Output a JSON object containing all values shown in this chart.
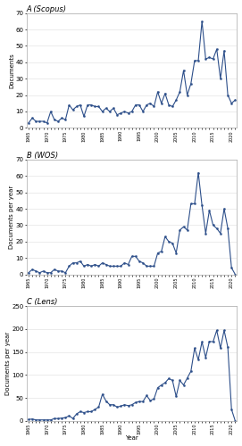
{
  "title_A": "A (Scopus)",
  "title_B": "B (WOS)",
  "title_C": "C (Lens)",
  "ylabel_A": "Documents",
  "ylabel_BC": "Documents per year",
  "xlabel": "Year",
  "line_color": "#2d4f8a",
  "marker": "o",
  "markersize": 1.5,
  "linewidth": 0.8,
  "years": [
    1965,
    1966,
    1967,
    1968,
    1969,
    1970,
    1971,
    1972,
    1973,
    1974,
    1975,
    1976,
    1977,
    1978,
    1979,
    1980,
    1981,
    1982,
    1983,
    1984,
    1985,
    1986,
    1987,
    1988,
    1989,
    1990,
    1991,
    1992,
    1993,
    1994,
    1995,
    1996,
    1997,
    1998,
    1999,
    2000,
    2001,
    2002,
    2003,
    2004,
    2005,
    2006,
    2007,
    2008,
    2009,
    2010,
    2011,
    2012,
    2013,
    2014,
    2015,
    2016,
    2017,
    2018,
    2019,
    2020,
    2021
  ],
  "scopus": [
    3,
    6,
    4,
    4,
    4,
    3,
    10,
    5,
    4,
    6,
    5,
    14,
    11,
    13,
    14,
    7,
    14,
    14,
    13,
    13,
    10,
    12,
    10,
    12,
    8,
    9,
    10,
    9,
    10,
    14,
    14,
    10,
    14,
    15,
    13,
    22,
    15,
    21,
    14,
    13,
    17,
    22,
    35,
    20,
    27,
    41,
    41,
    65,
    42,
    43,
    42,
    48,
    30,
    47,
    20,
    15,
    17
  ],
  "wos": [
    1,
    3,
    2,
    1,
    2,
    1,
    1,
    3,
    2,
    2,
    1,
    5,
    7,
    7,
    8,
    5,
    6,
    5,
    6,
    5,
    7,
    6,
    5,
    5,
    5,
    5,
    7,
    6,
    11,
    11,
    8,
    7,
    5,
    5,
    5,
    13,
    14,
    23,
    20,
    19,
    13,
    27,
    29,
    27,
    43,
    43,
    62,
    42,
    25,
    39,
    30,
    28,
    25,
    40,
    28,
    4,
    0
  ],
  "lens": [
    3,
    4,
    2,
    2,
    2,
    2,
    2,
    5,
    5,
    6,
    7,
    11,
    5,
    15,
    20,
    18,
    20,
    20,
    25,
    30,
    58,
    43,
    35,
    35,
    30,
    32,
    35,
    33,
    35,
    40,
    42,
    42,
    55,
    44,
    48,
    72,
    78,
    83,
    92,
    88,
    53,
    88,
    78,
    93,
    108,
    158,
    133,
    172,
    138,
    173,
    172,
    197,
    158,
    197,
    160,
    25,
    0
  ],
  "ylim_A": [
    0,
    70
  ],
  "ylim_B": [
    0,
    70
  ],
  "ylim_C": [
    0,
    250
  ],
  "yticks_A": [
    0,
    10,
    20,
    30,
    40,
    50,
    60,
    70
  ],
  "yticks_B": [
    0,
    10,
    20,
    30,
    40,
    50,
    60,
    70
  ],
  "yticks_C": [
    0,
    50,
    100,
    150,
    200,
    250
  ],
  "bg_color": "#ffffff",
  "fig_bg": "#ffffff",
  "title_fontsize": 6,
  "ylabel_fontsize": 5,
  "xlabel_fontsize": 5,
  "ytick_fontsize": 5,
  "xtick_fontsize": 3.5
}
